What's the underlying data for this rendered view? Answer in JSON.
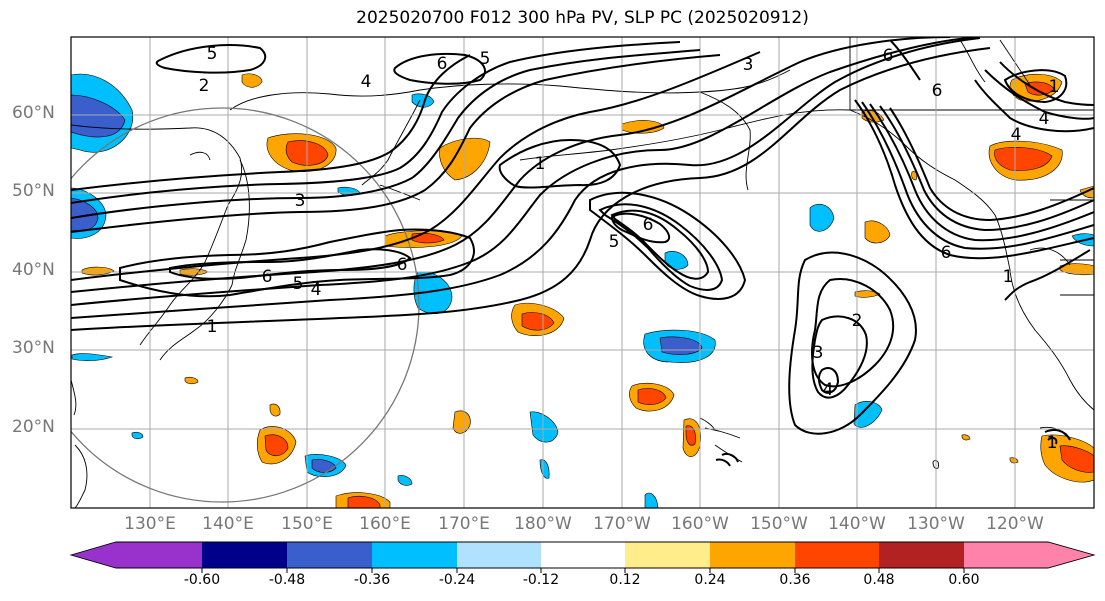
{
  "title": "2025020700 F012 300 hPa PV, SLP PC (2025020912)",
  "lat_labels": [
    "60°N",
    "50°N",
    "40°N",
    "30°N",
    "20°N"
  ],
  "lon_labels": [
    "130°E",
    "140°E",
    "150°E",
    "160°E",
    "170°E",
    "180°W",
    "170°W",
    "160°W",
    "150°W",
    "140°W",
    "130°W",
    "120°W"
  ],
  "colorbar": {
    "ticks": [
      "-0.60",
      "-0.48",
      "-0.36",
      "-0.24",
      "-0.12",
      "0.12",
      "0.24",
      "0.36",
      "0.48",
      "0.60"
    ],
    "colors": [
      "#9932CC",
      "#00008B",
      "#3A5FCD",
      "#00BFFF",
      "#B0E2FF",
      "#FFFFFF",
      "#FFEC8B",
      "#FFA500",
      "#FF4500",
      "#B22222",
      "#FF82AB"
    ]
  },
  "contour_labels": [
    "5",
    "6",
    "5",
    "2",
    "4",
    "3",
    "6",
    "6",
    "1",
    "3",
    "5",
    "6",
    "6",
    "5",
    "4",
    "1",
    "6",
    "2",
    "3",
    "4",
    "6",
    "4",
    "1",
    "1",
    "4",
    "1"
  ]
}
